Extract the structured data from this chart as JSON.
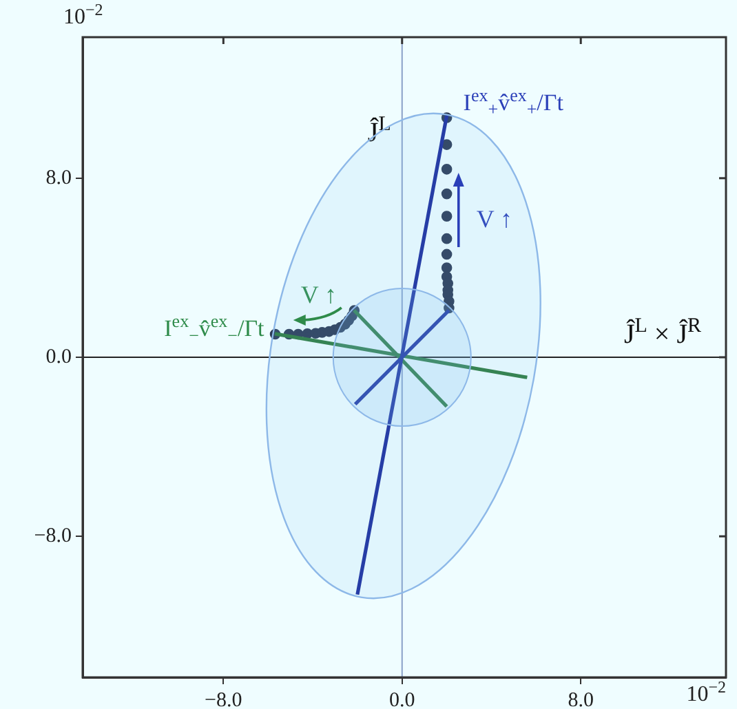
{
  "chart_data": {
    "type": "scatter",
    "xlim": [
      -14.3,
      14.5
    ],
    "ylim": [
      -14.3,
      14.3
    ],
    "xticks": [
      {
        "value": -8,
        "label": "−8.0"
      },
      {
        "value": 0,
        "label": "0.0"
      },
      {
        "value": 8,
        "label": "8.0"
      }
    ],
    "yticks": [
      {
        "value": -8,
        "label": "−8.0"
      },
      {
        "value": 0,
        "label": "0.0"
      },
      {
        "value": 8,
        "label": "8.0"
      }
    ],
    "grid": false,
    "legend": false,
    "series": [
      {
        "type": "line",
        "marker": "none",
        "color": "#1a2a9c",
        "x": [
          -2.0,
          2.0
        ],
        "values": [
          -10.6,
          10.8
        ]
      },
      {
        "type": "line",
        "marker": "none",
        "color": "#1a2a9c",
        "x": [
          -2.1,
          2.1
        ],
        "values": [
          -2.1,
          2.1
        ]
      },
      {
        "type": "line",
        "marker": "none",
        "color": "#2c7a3c",
        "x": [
          -5.7,
          5.6
        ],
        "values": [
          1.05,
          -0.9
        ]
      },
      {
        "type": "line",
        "marker": "none",
        "color": "#2c7a3c",
        "x": [
          -2.15,
          2.0
        ],
        "values": [
          2.1,
          -2.2
        ]
      },
      {
        "type": "scatter",
        "marker": "circle",
        "name": "I$^{ex}$$_{+}$v̂$^{ex}$$_{+}$/Γt",
        "color": "#2b3a55",
        "x": [
          2.0,
          2.0,
          2.0,
          2.0,
          2.0,
          2.0,
          2.0,
          2.0,
          2.0,
          2.05,
          2.05,
          2.05,
          2.1,
          2.1
        ],
        "values": [
          10.7,
          9.5,
          8.4,
          7.3,
          6.3,
          5.3,
          4.6,
          4.0,
          3.6,
          3.3,
          3.0,
          2.8,
          2.5,
          2.2
        ]
      },
      {
        "type": "scatter",
        "marker": "circle",
        "name": "I$^{ex}$$_{−}$v̂$^{ex}$$_{−}$/Γt",
        "color": "#2b3a55",
        "x": [
          -5.68,
          -5.06,
          -4.65,
          -4.24,
          -3.87,
          -3.58,
          -3.27,
          -3.01,
          -2.76,
          -2.55,
          -2.39,
          -2.24,
          -2.14
        ],
        "values": [
          1.03,
          1.03,
          1.03,
          1.05,
          1.07,
          1.11,
          1.15,
          1.23,
          1.34,
          1.48,
          1.65,
          1.85,
          2.09
        ]
      }
    ],
    "ref_lines": [
      {
        "axis": "x",
        "value": 0,
        "label": "Ĵ$^{L}$",
        "color": "#8aa0c8"
      },
      {
        "axis": "y",
        "value": 0,
        "label": "Ĵ$^{L}$ × Ĵ$^{R}$",
        "color": "#222222"
      }
    ],
    "annotations": [
      "10$^{−2}$",
      "10$^{−2}$",
      "V ↑",
      "V ↑"
    ]
  }
}
